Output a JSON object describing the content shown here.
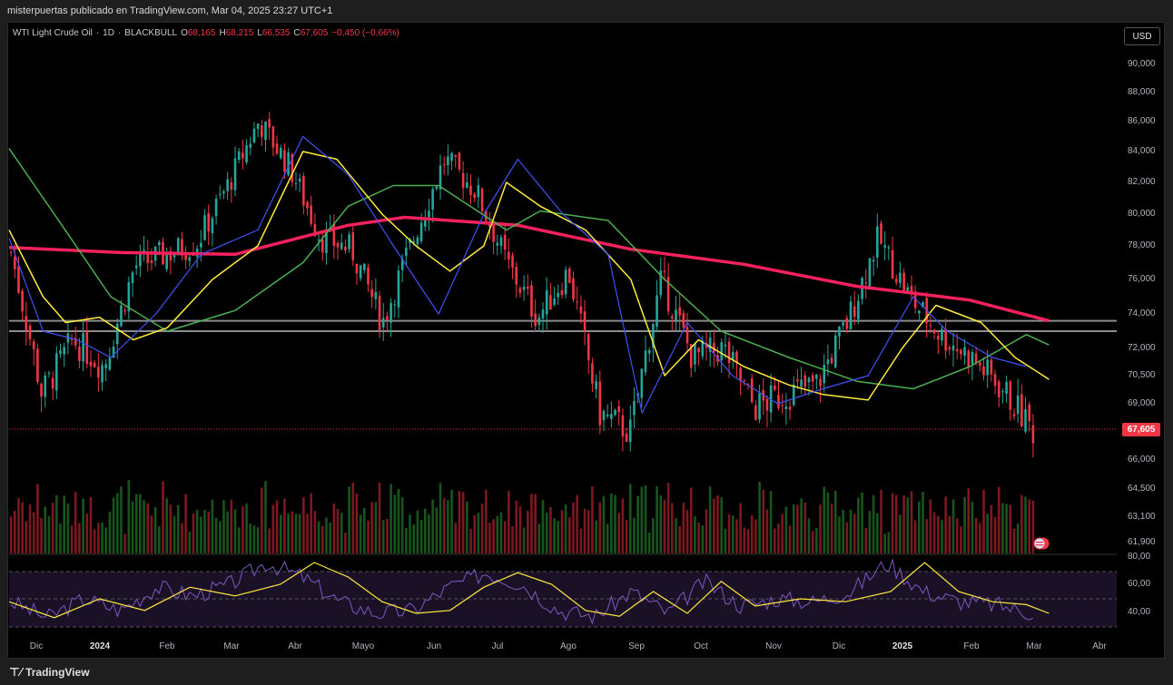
{
  "header": {
    "publisher_line": "misterpuertas publicado en TradingView.com, Mar 04, 2025 23:27 UTC+1"
  },
  "symbol": {
    "name": "WTI Light Crude Oil",
    "interval": "1D",
    "broker": "BLACKBULL",
    "open_label": "O",
    "open": "68,165",
    "high_label": "H",
    "high": "68,215",
    "low_label": "L",
    "low": "66,535",
    "close_label": "C",
    "close": "67,605",
    "change": "−0,450 (−0,66%)"
  },
  "currency_button": "USD",
  "last_price_badge": "67,605",
  "price_axis": [
    "90,000",
    "88,000",
    "86,000",
    "84,000",
    "82,000",
    "80,000",
    "78,000",
    "76,000",
    "74,000",
    "72,000",
    "70,500",
    "69,000",
    "66,000",
    "64,500",
    "63,100",
    "61,900"
  ],
  "rsi_axis": [
    "80,00",
    "60,00",
    "40,00"
  ],
  "time_axis": [
    {
      "label": "Dic",
      "bold": false
    },
    {
      "label": "2024",
      "bold": true
    },
    {
      "label": "Feb",
      "bold": false
    },
    {
      "label": "Mar",
      "bold": false
    },
    {
      "label": "Abr",
      "bold": false
    },
    {
      "label": "Mayo",
      "bold": false
    },
    {
      "label": "Jun",
      "bold": false
    },
    {
      "label": "Jul",
      "bold": false
    },
    {
      "label": "Ago",
      "bold": false
    },
    {
      "label": "Sep",
      "bold": false
    },
    {
      "label": "Oct",
      "bold": false
    },
    {
      "label": "Nov",
      "bold": false
    },
    {
      "label": "Dic",
      "bold": false
    },
    {
      "label": "2025",
      "bold": true
    },
    {
      "label": "Feb",
      "bold": false
    },
    {
      "label": "Mar",
      "bold": false
    },
    {
      "label": "Abr",
      "bold": false
    }
  ],
  "footer": {
    "brand": "TradingView",
    "logo_icon": "tradingview-logo-icon"
  },
  "colors": {
    "up": "#26a69a",
    "down": "#f23645",
    "ma200": "#f7215e",
    "ma100": "#4caf50",
    "ma20": "#ffeb3b",
    "ma9": "#3f51f5",
    "rsi": "#7e57c2",
    "rsi_ma": "#ffeb3b"
  },
  "chart_data": {
    "type": "candlestick",
    "y_range": [
      61.0,
      91.0
    ],
    "horizontal_levels": [
      73.6,
      73.0
    ],
    "last_price": 67.605,
    "anchors": [
      {
        "date": "Dic",
        "close": 77.6
      },
      {
        "date": "Dic",
        "close": 69.5
      },
      {
        "date": "2024",
        "close": 72.5
      },
      {
        "date": "2024",
        "close": 71.0
      },
      {
        "date": "Feb",
        "close": 76.8
      },
      {
        "date": "Feb",
        "close": 77.5
      },
      {
        "date": "Mar",
        "close": 78.2
      },
      {
        "date": "Mar",
        "close": 81.8
      },
      {
        "date": "Abr",
        "close": 86.0
      },
      {
        "date": "Abr",
        "close": 83.0
      },
      {
        "date": "Mayo",
        "close": 78.5
      },
      {
        "date": "Mayo",
        "close": 77.8
      },
      {
        "date": "Jun",
        "close": 73.5
      },
      {
        "date": "Jun",
        "close": 78.5
      },
      {
        "date": "Jul",
        "close": 83.5
      },
      {
        "date": "Jul",
        "close": 81.5
      },
      {
        "date": "Ago",
        "close": 77.0
      },
      {
        "date": "Ago",
        "close": 73.8
      },
      {
        "date": "Ago",
        "close": 76.5
      },
      {
        "date": "Sep",
        "close": 68.5
      },
      {
        "date": "Sep",
        "close": 67.5
      },
      {
        "date": "Oct",
        "close": 76.0
      },
      {
        "date": "Oct",
        "close": 71.5
      },
      {
        "date": "Nov",
        "close": 72.0
      },
      {
        "date": "Nov",
        "close": 68.8
      },
      {
        "date": "Dic",
        "close": 69.5
      },
      {
        "date": "Dic",
        "close": 70.0
      },
      {
        "date": "2025",
        "close": 73.5
      },
      {
        "date": "2025",
        "close": 78.5
      },
      {
        "date": "2025",
        "close": 75.0
      },
      {
        "date": "Feb",
        "close": 72.8
      },
      {
        "date": "Feb",
        "close": 71.5
      },
      {
        "date": "Mar",
        "close": 69.8
      },
      {
        "date": "Mar",
        "close": 67.6
      }
    ],
    "series": [
      {
        "role": "ma200",
        "points": [
          [
            0,
            77.9
          ],
          [
            0.1,
            77.6
          ],
          [
            0.2,
            77.5
          ],
          [
            0.3,
            79.3
          ],
          [
            0.35,
            79.8
          ],
          [
            0.45,
            79.3
          ],
          [
            0.55,
            77.8
          ],
          [
            0.65,
            76.9
          ],
          [
            0.75,
            75.6
          ],
          [
            0.85,
            74.8
          ],
          [
            0.92,
            73.6
          ]
        ]
      },
      {
        "role": "ma100",
        "points": [
          [
            0,
            84.2
          ],
          [
            0.04,
            80.0
          ],
          [
            0.09,
            75.0
          ],
          [
            0.14,
            73.0
          ],
          [
            0.2,
            74.2
          ],
          [
            0.26,
            77.0
          ],
          [
            0.3,
            80.5
          ],
          [
            0.34,
            81.8
          ],
          [
            0.38,
            81.8
          ],
          [
            0.44,
            79.0
          ],
          [
            0.47,
            80.2
          ],
          [
            0.53,
            79.6
          ],
          [
            0.58,
            76.0
          ],
          [
            0.63,
            73.0
          ],
          [
            0.69,
            71.5
          ],
          [
            0.75,
            70.2
          ],
          [
            0.8,
            69.8
          ],
          [
            0.85,
            71.0
          ],
          [
            0.9,
            72.8
          ],
          [
            0.92,
            72.2
          ]
        ]
      },
      {
        "role": "ma20",
        "points": [
          [
            0,
            79.0
          ],
          [
            0.03,
            75.0
          ],
          [
            0.05,
            73.5
          ],
          [
            0.08,
            73.8
          ],
          [
            0.11,
            72.5
          ],
          [
            0.14,
            73.2
          ],
          [
            0.18,
            76.0
          ],
          [
            0.22,
            78.0
          ],
          [
            0.26,
            84.0
          ],
          [
            0.29,
            83.5
          ],
          [
            0.33,
            80.0
          ],
          [
            0.36,
            78.0
          ],
          [
            0.39,
            76.5
          ],
          [
            0.42,
            78.0
          ],
          [
            0.44,
            82.0
          ],
          [
            0.47,
            80.5
          ],
          [
            0.51,
            79.0
          ],
          [
            0.55,
            76.0
          ],
          [
            0.58,
            70.5
          ],
          [
            0.61,
            72.5
          ],
          [
            0.65,
            71.0
          ],
          [
            0.69,
            70.0
          ],
          [
            0.72,
            69.5
          ],
          [
            0.76,
            69.2
          ],
          [
            0.79,
            72.0
          ],
          [
            0.82,
            74.5
          ],
          [
            0.86,
            73.5
          ],
          [
            0.89,
            71.5
          ],
          [
            0.92,
            70.3
          ]
        ]
      },
      {
        "role": "ma9",
        "points": [
          [
            0,
            78.5
          ],
          [
            0.03,
            73.0
          ],
          [
            0.06,
            72.5
          ],
          [
            0.09,
            71.5
          ],
          [
            0.13,
            74.0
          ],
          [
            0.17,
            77.5
          ],
          [
            0.22,
            79.0
          ],
          [
            0.26,
            85.0
          ],
          [
            0.3,
            82.5
          ],
          [
            0.34,
            78.0
          ],
          [
            0.38,
            74.0
          ],
          [
            0.42,
            80.0
          ],
          [
            0.45,
            83.5
          ],
          [
            0.49,
            80.0
          ],
          [
            0.53,
            77.5
          ],
          [
            0.56,
            68.5
          ],
          [
            0.6,
            73.5
          ],
          [
            0.64,
            70.5
          ],
          [
            0.68,
            69.0
          ],
          [
            0.72,
            69.8
          ],
          [
            0.76,
            70.5
          ],
          [
            0.8,
            75.0
          ],
          [
            0.83,
            73.0
          ],
          [
            0.87,
            71.5
          ],
          [
            0.9,
            71.0
          ]
        ]
      }
    ],
    "rsi": {
      "levels": [
        70,
        50,
        30
      ],
      "y_range": [
        25,
        80
      ],
      "points": [
        [
          0,
          48
        ],
        [
          0.04,
          37
        ],
        [
          0.08,
          50
        ],
        [
          0.12,
          42
        ],
        [
          0.16,
          58
        ],
        [
          0.2,
          52
        ],
        [
          0.24,
          60
        ],
        [
          0.27,
          75
        ],
        [
          0.3,
          65
        ],
        [
          0.33,
          48
        ],
        [
          0.36,
          40
        ],
        [
          0.39,
          42
        ],
        [
          0.42,
          58
        ],
        [
          0.45,
          68
        ],
        [
          0.48,
          60
        ],
        [
          0.51,
          42
        ],
        [
          0.54,
          38
        ],
        [
          0.57,
          55
        ],
        [
          0.6,
          40
        ],
        [
          0.63,
          62
        ],
        [
          0.66,
          45
        ],
        [
          0.7,
          50
        ],
        [
          0.74,
          48
        ],
        [
          0.78,
          55
        ],
        [
          0.81,
          75
        ],
        [
          0.84,
          55
        ],
        [
          0.87,
          48
        ],
        [
          0.9,
          46
        ],
        [
          0.92,
          40
        ]
      ]
    }
  }
}
